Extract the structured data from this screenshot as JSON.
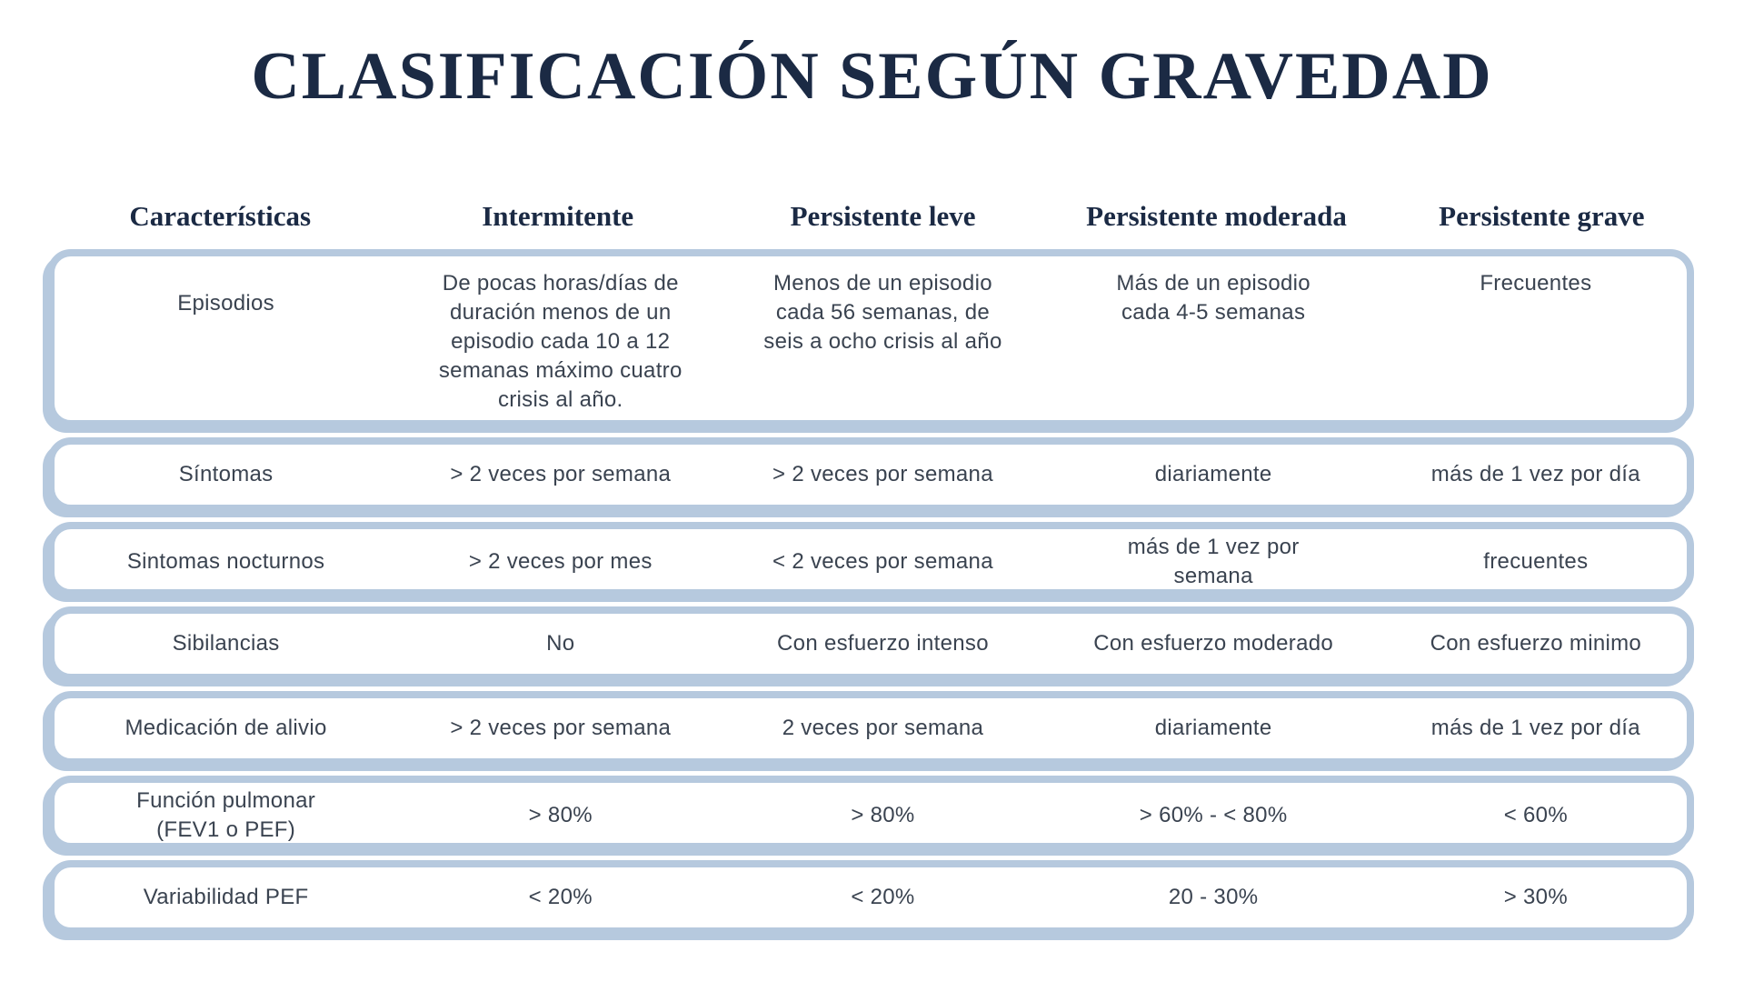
{
  "title": "CLASIFICACIÓN SEGÚN GRAVEDAD",
  "colors": {
    "border": "#b6c9de",
    "heading": "#1b2a44",
    "body": "#3a4350",
    "background": "#ffffff"
  },
  "table": {
    "columns": [
      "Características",
      "Intermitente",
      "Persistente leve",
      "Persistente moderada",
      "Persistente grave"
    ],
    "rows": [
      {
        "label": "Episodios",
        "cells": [
          "De pocas horas/días de\nduración menos de un\nepisodio cada 10 a 12\nsemanas máximo cuatro\ncrisis al año.",
          "Menos de un episodio\ncada 56 semanas, de\nseis a ocho crisis al año",
          "Más de un episodio\ncada 4-5 semanas",
          "Frecuentes"
        ]
      },
      {
        "label": "Síntomas",
        "cells": [
          "> 2 veces por semana",
          "> 2 veces por semana",
          "diariamente",
          "más de 1 vez por día"
        ]
      },
      {
        "label": "Sintomas nocturnos",
        "cells": [
          "> 2 veces por mes",
          "< 2 veces por semana",
          "más de 1 vez por\nsemana",
          "frecuentes"
        ]
      },
      {
        "label": "Sibilancias",
        "cells": [
          "No",
          "Con esfuerzo intenso",
          "Con esfuerzo moderado",
          "Con esfuerzo minimo"
        ]
      },
      {
        "label": "Medicación de alivio",
        "cells": [
          "> 2 veces por semana",
          "2 veces por semana",
          "diariamente",
          "más de 1 vez por día"
        ]
      },
      {
        "label": "Función pulmonar\n(FEV1 o PEF)",
        "cells": [
          "> 80%",
          "> 80%",
          "> 60% - < 80%",
          "< 60%"
        ]
      },
      {
        "label": "Variabilidad PEF",
        "cells": [
          "< 20%",
          "< 20%",
          "20 - 30%",
          "> 30%"
        ]
      }
    ]
  }
}
